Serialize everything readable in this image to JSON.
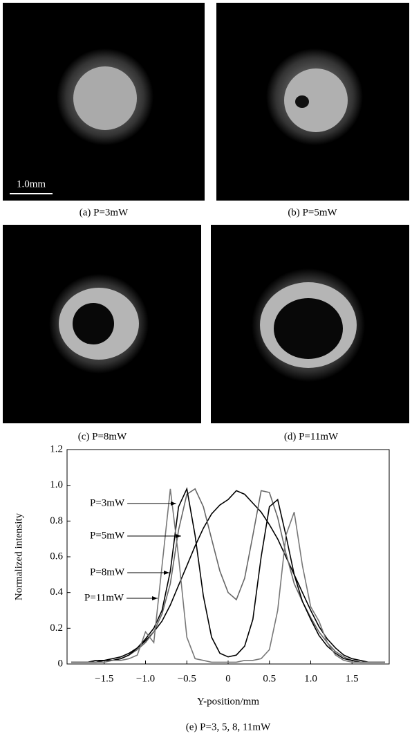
{
  "figure": {
    "scale_bar": "1.0mm",
    "panels": [
      {
        "caption": "(a) P=3mW"
      },
      {
        "caption": "(b) P=5mW"
      },
      {
        "caption": "(c) P=8mW"
      },
      {
        "caption": "(d) P=11mW"
      }
    ]
  },
  "chart_data": {
    "type": "line",
    "caption": "(e) P=3, 5, 8, 11mW",
    "x_label": "Y-position/mm",
    "y_label": "Normalized intensity",
    "xlim": [
      -1.95,
      1.95
    ],
    "ylim": [
      0,
      1.2
    ],
    "xticks": [
      {
        "value": -1.5,
        "label": "−1.5"
      },
      {
        "value": -1.0,
        "label": "−1.0"
      },
      {
        "value": -0.5,
        "label": "−0.5"
      },
      0,
      0.5,
      {
        "value": 1.0,
        "label": "1.0"
      },
      1.5
    ],
    "yticks": [
      0,
      0.2,
      0.4,
      0.6,
      0.8,
      {
        "value": 1.0,
        "label": "1.0"
      },
      1.2
    ],
    "x": [
      -1.9,
      -1.8,
      -1.7,
      -1.6,
      -1.5,
      -1.4,
      -1.3,
      -1.2,
      -1.1,
      -1.0,
      -0.9,
      -0.8,
      -0.7,
      -0.6,
      -0.5,
      -0.4,
      -0.3,
      -0.2,
      -0.1,
      0,
      0.1,
      0.2,
      0.3,
      0.4,
      0.5,
      0.6,
      0.7,
      0.8,
      0.9,
      1.0,
      1.1,
      1.2,
      1.3,
      1.4,
      1.5,
      1.6,
      1.7,
      1.8,
      1.9
    ],
    "series": [
      {
        "name": "P=3mW",
        "color": "#000000",
        "values": [
          0.01,
          0.01,
          0.01,
          0.02,
          0.02,
          0.03,
          0.04,
          0.06,
          0.09,
          0.13,
          0.18,
          0.24,
          0.33,
          0.44,
          0.55,
          0.66,
          0.76,
          0.84,
          0.89,
          0.92,
          0.97,
          0.95,
          0.9,
          0.85,
          0.78,
          0.7,
          0.6,
          0.5,
          0.4,
          0.3,
          0.21,
          0.14,
          0.09,
          0.05,
          0.03,
          0.02,
          0.01,
          0.01,
          0.01
        ]
      },
      {
        "name": "P=5mW",
        "color": "#666666",
        "values": [
          0.01,
          0.01,
          0.01,
          0.01,
          0.02,
          0.02,
          0.03,
          0.05,
          0.08,
          0.12,
          0.18,
          0.28,
          0.45,
          0.75,
          0.95,
          0.98,
          0.88,
          0.7,
          0.52,
          0.4,
          0.36,
          0.48,
          0.72,
          0.97,
          0.96,
          0.82,
          0.62,
          0.45,
          0.35,
          0.26,
          0.18,
          0.12,
          0.07,
          0.04,
          0.02,
          0.01,
          0.01,
          0.01,
          0.01
        ]
      },
      {
        "name": "P=8mW",
        "color": "#000000",
        "values": [
          0.01,
          0.01,
          0.01,
          0.01,
          0.02,
          0.02,
          0.03,
          0.05,
          0.09,
          0.14,
          0.2,
          0.3,
          0.52,
          0.88,
          0.98,
          0.72,
          0.38,
          0.15,
          0.06,
          0.04,
          0.05,
          0.1,
          0.25,
          0.6,
          0.88,
          0.92,
          0.72,
          0.5,
          0.35,
          0.25,
          0.16,
          0.1,
          0.06,
          0.03,
          0.02,
          0.01,
          0.01,
          0.01,
          0.01
        ]
      },
      {
        "name": "P=11mW",
        "color": "#777777",
        "values": [
          0.01,
          0.01,
          0.01,
          0.01,
          0.01,
          0.02,
          0.02,
          0.03,
          0.05,
          0.18,
          0.12,
          0.55,
          0.98,
          0.6,
          0.15,
          0.03,
          0.02,
          0.01,
          0.01,
          0.01,
          0.01,
          0.02,
          0.02,
          0.03,
          0.08,
          0.3,
          0.72,
          0.85,
          0.55,
          0.32,
          0.24,
          0.12,
          0.05,
          0.02,
          0.01,
          0.01,
          0.01,
          0.01,
          0.01
        ]
      }
    ]
  }
}
